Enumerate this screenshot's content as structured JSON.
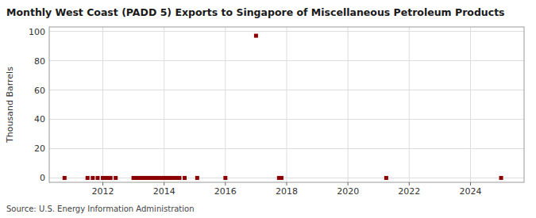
{
  "chart_data": {
    "type": "scatter",
    "title": "Monthly West Coast (PADD 5) Exports to Singapore of Miscellaneous Petroleum Products",
    "y_label": "Thousand Barrels",
    "source": "Source: U.S. Energy Information Administration",
    "color": "#8b0000",
    "marker": "square",
    "grid": true,
    "xlim": [
      2010.25,
      2025.75
    ],
    "ylim": [
      -3,
      103
    ],
    "xticks": [
      2012,
      2014,
      2016,
      2018,
      2020,
      2022,
      2024
    ],
    "yticks": [
      0,
      20,
      40,
      60,
      80,
      100
    ],
    "x": [
      2010.75,
      2011.5,
      2011.67,
      2011.83,
      2012.0,
      2012.08,
      2012.17,
      2012.25,
      2012.42,
      2013.0,
      2013.08,
      2013.17,
      2013.25,
      2013.33,
      2013.42,
      2013.5,
      2013.58,
      2013.67,
      2013.75,
      2013.83,
      2013.92,
      2014.0,
      2014.08,
      2014.17,
      2014.25,
      2014.33,
      2014.42,
      2014.5,
      2014.67,
      2015.08,
      2016.0,
      2017.0,
      2017.75,
      2017.83,
      2021.25,
      2025.0
    ],
    "values": [
      0,
      0,
      0,
      0,
      0,
      0,
      0,
      0,
      0,
      0,
      0,
      0,
      0,
      0,
      0,
      0,
      0,
      0,
      0,
      0,
      0,
      0,
      0,
      0,
      0,
      0,
      0,
      0,
      0,
      0,
      0,
      97,
      0,
      0,
      0,
      0
    ]
  }
}
